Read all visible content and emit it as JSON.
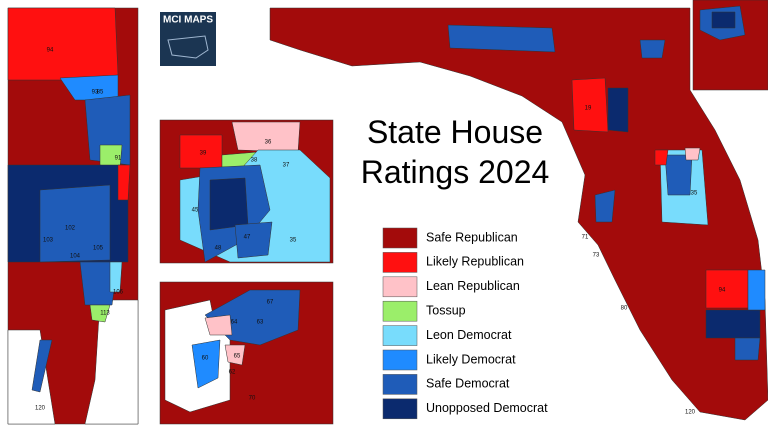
{
  "title": "State House Ratings 2024",
  "logo": "MCI MAPS",
  "legend": [
    {
      "label": "Safe Republican",
      "color": "#a30b0b"
    },
    {
      "label": "Likely Republican",
      "color": "#ff1010"
    },
    {
      "label": "Lean Republican",
      "color": "#ffc2c8"
    },
    {
      "label": "Tossup",
      "color": "#9bee6a"
    },
    {
      "label": "Leon Democrat",
      "color": "#78dcfc"
    },
    {
      "label": "Likely Democrat",
      "color": "#1f8bff"
    },
    {
      "label": "Safe Democrat",
      "color": "#1f5cb8"
    },
    {
      "label": "Unopposed Democrat",
      "color": "#0b2a6e"
    }
  ],
  "district_labels": [
    "94",
    "93",
    "85",
    "91",
    "103",
    "102",
    "105",
    "104",
    "106",
    "113",
    "120",
    "36",
    "39",
    "38",
    "37",
    "45",
    "47",
    "35",
    "48",
    "64",
    "63",
    "60",
    "65",
    "62",
    "67",
    "70",
    "94",
    "120",
    "35",
    "19",
    "71",
    "73",
    "80"
  ]
}
